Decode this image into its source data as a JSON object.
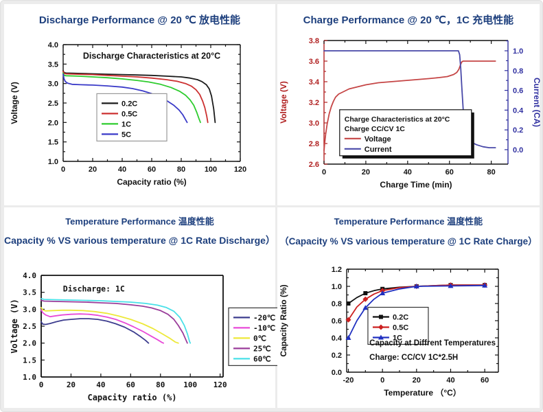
{
  "page": {
    "title_color": "#1d3f7d",
    "frame_color": "#ececec",
    "panel_bg": "#ffffff"
  },
  "panels": [
    {
      "id": "discharge-20c",
      "title": "Discharge Performance @ 20 ℃  放电性能"
    },
    {
      "id": "charge-20c",
      "title": "Charge Performance @ 20 ℃，1C 充电性能"
    },
    {
      "id": "temp-discharge",
      "title": "Temperature Performance 温度性能",
      "subtitle": "Capacity % VS various temperature @ 1C Rate Discharge）"
    },
    {
      "id": "temp-charge",
      "title": "Temperature Performance 温度性能",
      "subtitle": "（Capacity % VS various temperature @ 1C Rate Charge）"
    }
  ],
  "chart_data": [
    {
      "type": "line",
      "title": "Discharge Characteristics at 20°C",
      "xlabel": "Capacity ratio (%)",
      "ylabel": "Voltage (V)",
      "xlim": [
        0,
        120
      ],
      "ylim": [
        1.0,
        4.0
      ],
      "xticks": [
        0,
        20,
        40,
        60,
        80,
        100,
        120
      ],
      "yticks": [
        1.0,
        1.5,
        2.0,
        2.5,
        3.0,
        3.5,
        4.0
      ],
      "xminor": [
        10,
        30,
        50,
        70,
        90,
        110
      ],
      "yminor": [
        1.25,
        1.75,
        2.25,
        2.75,
        3.25,
        3.75
      ],
      "xdec": 0,
      "ydec": 1,
      "box": true,
      "series": [
        {
          "name": "0.2C",
          "color": "#1a1a1a",
          "x": [
            0,
            0.6,
            2,
            10,
            20,
            30,
            40,
            50,
            60,
            70,
            80,
            86,
            91,
            94,
            97,
            99,
            100.5,
            102,
            103
          ],
          "y": [
            3.33,
            3.28,
            3.27,
            3.26,
            3.25,
            3.24,
            3.23,
            3.22,
            3.21,
            3.19,
            3.17,
            3.14,
            3.1,
            3.05,
            2.97,
            2.86,
            2.68,
            2.35,
            2.0
          ]
        },
        {
          "name": "0.5C",
          "color": "#cc3030",
          "x": [
            0,
            0.6,
            2,
            10,
            20,
            30,
            40,
            50,
            60,
            70,
            77,
            83,
            87,
            90,
            92.5,
            94.5,
            96,
            97.3,
            98
          ],
          "y": [
            3.31,
            3.26,
            3.25,
            3.24,
            3.23,
            3.21,
            3.19,
            3.17,
            3.14,
            3.1,
            3.06,
            3.0,
            2.93,
            2.84,
            2.72,
            2.55,
            2.38,
            2.16,
            2.0
          ]
        },
        {
          "name": "1C",
          "color": "#2ecc2e",
          "x": [
            0,
            0.6,
            2,
            10,
            20,
            30,
            40,
            50,
            58,
            66,
            73,
            79,
            83,
            86,
            88.5,
            90.5,
            92,
            93
          ],
          "y": [
            3.27,
            3.21,
            3.2,
            3.19,
            3.17,
            3.15,
            3.12,
            3.08,
            3.04,
            2.98,
            2.9,
            2.8,
            2.7,
            2.58,
            2.44,
            2.26,
            2.1,
            2.0
          ]
        },
        {
          "name": "5C",
          "color": "#3a3ac8",
          "x": [
            0,
            0.6,
            1.5,
            3,
            6,
            12,
            20,
            30,
            40,
            47,
            54,
            60,
            66,
            71,
            75,
            78.5,
            81,
            83,
            84
          ],
          "y": [
            3.24,
            3.12,
            3.05,
            3.01,
            2.98,
            2.97,
            2.96,
            2.94,
            2.91,
            2.87,
            2.81,
            2.74,
            2.64,
            2.54,
            2.44,
            2.32,
            2.2,
            2.07,
            2.0
          ]
        }
      ],
      "legend": {
        "pos": "inside",
        "x": 0.19,
        "y": 0.42,
        "w": 88,
        "border": "#999",
        "entries": [
          "0.2C",
          "0.5C",
          "1C",
          "5C"
        ]
      },
      "annotations": [
        {
          "text": "Discharge Characteristics at 20°C",
          "x": 0.5,
          "y": 0.12,
          "anchor": "middle",
          "size": 12.5
        }
      ]
    },
    {
      "type": "line",
      "title": "Charge Characteristics at 20°C",
      "xlabel": "Charge Time (min)",
      "ylabel": "Voltage (V)",
      "y2label": "Current (CA)",
      "xlim": [
        0,
        88
      ],
      "ylim": [
        2.6,
        3.8
      ],
      "y2lim": [
        -0.146,
        1.104
      ],
      "xticks": [
        0,
        20,
        40,
        60,
        80
      ],
      "yticks": [
        2.6,
        2.8,
        3.0,
        3.2,
        3.4,
        3.6,
        3.8
      ],
      "y2ticks": [
        0.0,
        0.2,
        0.4,
        0.6,
        0.8,
        1.0
      ],
      "xminor": [
        10,
        30,
        50,
        70
      ],
      "yminor": [
        2.7,
        2.9,
        3.1,
        3.3,
        3.5,
        3.7
      ],
      "y2minor": [
        0.1,
        0.3,
        0.5,
        0.7,
        0.9,
        1.1
      ],
      "xdec": 0,
      "ydec": 1,
      "y2dec": 1,
      "box": true,
      "axis_colors": {
        "left": "#b02020",
        "right": "#3030a0",
        "x": "#111111"
      },
      "series": [
        {
          "name": "Voltage",
          "color": "#c54545",
          "x": [
            0,
            0.3,
            0.8,
            1.5,
            2.5,
            3.5,
            4.5,
            5.5,
            7,
            9,
            12,
            16,
            20,
            26,
            32,
            38,
            44,
            50,
            55,
            59,
            62,
            63.5,
            64.5,
            65.2,
            65.8,
            66.5,
            82
          ],
          "y": [
            2.73,
            2.8,
            2.89,
            2.99,
            3.09,
            3.16,
            3.21,
            3.25,
            3.28,
            3.3,
            3.33,
            3.35,
            3.37,
            3.39,
            3.4,
            3.41,
            3.42,
            3.43,
            3.44,
            3.45,
            3.47,
            3.49,
            3.52,
            3.56,
            3.59,
            3.6,
            3.6
          ]
        },
        {
          "name": "Current",
          "color": "#4848a8",
          "axis": "right",
          "x": [
            0,
            64.3,
            64.9,
            65.4,
            66,
            66.6,
            67.2,
            67.8,
            68.5,
            69.5,
            71,
            73,
            76,
            79,
            82
          ],
          "y": [
            1.0,
            1.0,
            0.96,
            0.82,
            0.6,
            0.4,
            0.26,
            0.18,
            0.13,
            0.1,
            0.07,
            0.05,
            0.03,
            0.02,
            0.02
          ]
        }
      ],
      "legend": {
        "pos": "inside",
        "x": 0.085,
        "y": 0.56,
        "w": 178,
        "border": "#111",
        "shadow": true,
        "lines": [
          "Charge Characteristics at 20°C",
          "Charge CC/CV 1C"
        ],
        "entries": [
          "Voltage",
          "Current"
        ]
      }
    },
    {
      "type": "line",
      "title": "Discharge: 1C",
      "xlabel": "Capacity ratio (%)",
      "ylabel": "Voltage (V)",
      "xlim": [
        0,
        122
      ],
      "ylim": [
        1.0,
        4.0
      ],
      "xticks": [
        0,
        20,
        40,
        60,
        80,
        100,
        120
      ],
      "yticks": [
        1.0,
        1.5,
        2.0,
        2.5,
        3.0,
        3.5,
        4.0
      ],
      "xdec": 0,
      "ydec": 1,
      "box": false,
      "font": "mono",
      "series": [
        {
          "name": "-20℃",
          "color": "#3c3c8e",
          "x": [
            0,
            1,
            3,
            6,
            10,
            15,
            20,
            26,
            32,
            38,
            44,
            50,
            56,
            62,
            67,
            70,
            72
          ],
          "y": [
            2.63,
            2.56,
            2.55,
            2.58,
            2.63,
            2.68,
            2.7,
            2.72,
            2.72,
            2.7,
            2.65,
            2.57,
            2.47,
            2.33,
            2.18,
            2.08,
            2.0
          ]
        },
        {
          "name": "-10℃",
          "color": "#e84ad8",
          "x": [
            0,
            1,
            3,
            6,
            9,
            14,
            20,
            26,
            32,
            38,
            44,
            50,
            56,
            62,
            68,
            74,
            78,
            81,
            82
          ],
          "y": [
            2.98,
            2.9,
            2.83,
            2.78,
            2.8,
            2.83,
            2.85,
            2.86,
            2.85,
            2.82,
            2.77,
            2.7,
            2.6,
            2.48,
            2.35,
            2.2,
            2.1,
            2.02,
            2.0
          ]
        },
        {
          "name": "0℃",
          "color": "#ede93a",
          "x": [
            0,
            1,
            3,
            8,
            14,
            20,
            28,
            36,
            44,
            52,
            60,
            68,
            75,
            81,
            86,
            90,
            92
          ],
          "y": [
            3.05,
            2.98,
            2.95,
            2.96,
            2.97,
            2.97,
            2.96,
            2.93,
            2.88,
            2.8,
            2.7,
            2.57,
            2.43,
            2.28,
            2.15,
            2.03,
            2.0
          ]
        },
        {
          "name": "25℃",
          "color": "#9a3c9a",
          "x": [
            0,
            2,
            10,
            20,
            30,
            40,
            50,
            60,
            68,
            74,
            80,
            85,
            89,
            92,
            95,
            97,
            98
          ],
          "y": [
            3.26,
            3.24,
            3.23,
            3.22,
            3.21,
            3.19,
            3.17,
            3.13,
            3.09,
            3.04,
            2.96,
            2.85,
            2.7,
            2.52,
            2.3,
            2.1,
            2.0
          ]
        },
        {
          "name": "60℃",
          "color": "#48e0e8",
          "x": [
            0,
            2,
            10,
            20,
            30,
            40,
            50,
            60,
            70,
            78,
            84,
            89,
            93,
            96,
            98,
            99.5,
            100
          ],
          "y": [
            3.31,
            3.29,
            3.28,
            3.27,
            3.26,
            3.25,
            3.23,
            3.21,
            3.17,
            3.12,
            3.05,
            2.94,
            2.76,
            2.52,
            2.28,
            2.05,
            2.0
          ]
        }
      ],
      "legend": {
        "pos": "right",
        "y": 0.32,
        "w": 62,
        "border": "#333",
        "entries": [
          "-20℃",
          "-10℃",
          "0℃",
          "25℃",
          "60℃"
        ]
      },
      "annotations": [
        {
          "text": "Discharge: 1C",
          "x": 0.12,
          "y": 0.16,
          "anchor": "start",
          "size": 11.5
        }
      ]
    },
    {
      "type": "line",
      "title": "Capacity at Diffrent Temperatures",
      "xlabel": "Temperature （°C）",
      "ylabel": "Capacity Ratio (%)",
      "xlim": [
        -21,
        68
      ],
      "ylim": [
        0.0,
        1.2
      ],
      "xticks": [
        -20,
        0,
        20,
        40,
        60
      ],
      "yticks": [
        0.0,
        0.2,
        0.4,
        0.6,
        0.8,
        1.0,
        1.2
      ],
      "xminor": [
        -10,
        10,
        30,
        50
      ],
      "yminor": [
        0.1,
        0.3,
        0.5,
        0.7,
        0.9,
        1.1
      ],
      "xdec": 0,
      "ydec": 1,
      "box": true,
      "series": [
        {
          "name": "0.2C",
          "color": "#111111",
          "marker": "square",
          "x": [
            -20,
            -15,
            -10,
            -5,
            0,
            10,
            20,
            40,
            60
          ],
          "y": [
            0.8,
            0.87,
            0.92,
            0.95,
            0.97,
            0.99,
            1.0,
            1.015,
            1.015
          ],
          "mx": [
            -20,
            -10,
            0,
            20,
            40,
            60
          ],
          "my": [
            0.8,
            0.92,
            0.97,
            1.0,
            1.015,
            1.015
          ]
        },
        {
          "name": "0.5C",
          "color": "#cc2020",
          "marker": "diamond",
          "x": [
            -20,
            -15,
            -10,
            -5,
            0,
            10,
            20,
            40,
            60
          ],
          "y": [
            0.61,
            0.76,
            0.85,
            0.91,
            0.95,
            0.985,
            1.0,
            1.015,
            1.015
          ],
          "mx": [
            -20,
            -10,
            0,
            20,
            40,
            60
          ],
          "my": [
            0.61,
            0.85,
            0.95,
            1.0,
            1.015,
            1.015
          ]
        },
        {
          "name": "1C",
          "color": "#2030c0",
          "marker": "triangle",
          "x": [
            -20,
            -15,
            -10,
            -5,
            0,
            10,
            20,
            40,
            60
          ],
          "y": [
            0.4,
            0.6,
            0.75,
            0.85,
            0.92,
            0.97,
            1.0,
            1.005,
            1.01
          ],
          "mx": [
            -20,
            -10,
            0,
            20,
            40,
            60
          ],
          "my": [
            0.4,
            0.75,
            0.92,
            1.0,
            1.005,
            1.01
          ]
        }
      ],
      "legend": {
        "pos": "inside",
        "x": 0.14,
        "y": 0.37,
        "w": 74,
        "border": "#333",
        "markers": true,
        "entries": [
          "0.2C",
          "0.5C",
          "1C"
        ]
      },
      "annotations": [
        {
          "text": "Capacity at Diffrent Temperatures",
          "x": 0.15,
          "y": 0.74,
          "anchor": "start",
          "size": 11.5
        },
        {
          "text": "Charge: CC/CV 1C*2.5H",
          "x": 0.15,
          "y": 0.88,
          "anchor": "start",
          "size": 11.5
        }
      ]
    }
  ]
}
